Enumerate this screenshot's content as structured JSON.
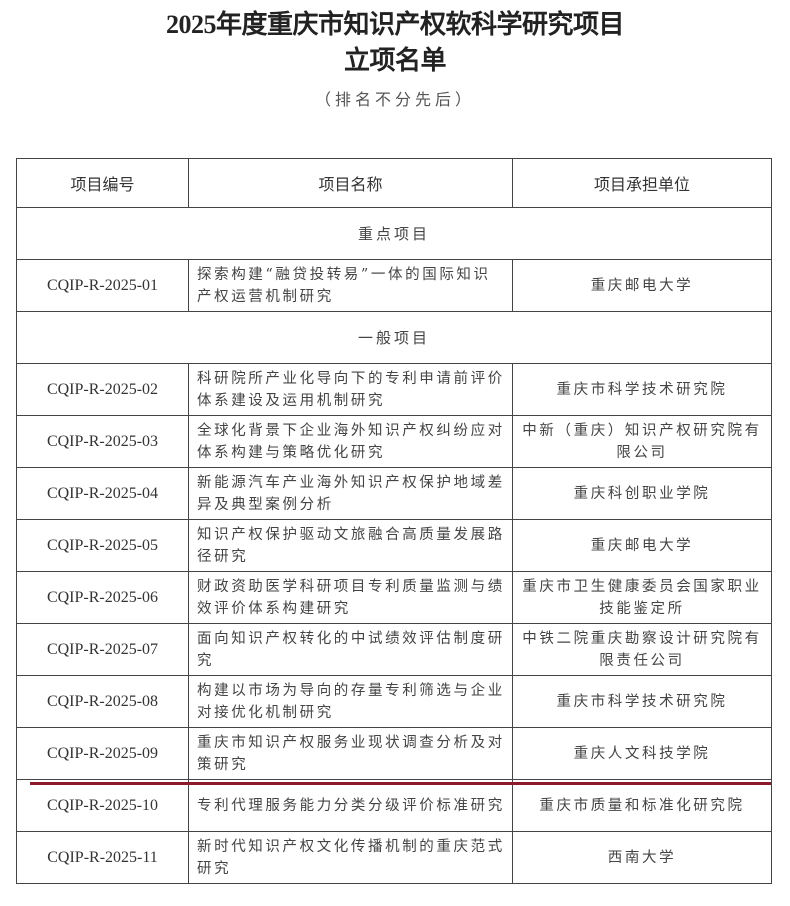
{
  "document": {
    "title_line1": "2025年度重庆市知识产权软科学研究项目",
    "title_line2": "立项名单",
    "subtitle": "（排名不分先后）"
  },
  "table": {
    "headers": [
      "项目编号",
      "项目名称",
      "项目承担单位"
    ],
    "sections": [
      {
        "label": "重点项目",
        "rows": [
          {
            "code": "CQIP-R-2025-01",
            "name": "探索构建“融贷投转易”一体的国际知识产权运营机制研究",
            "unit": "重庆邮电大学"
          }
        ]
      },
      {
        "label": "一般项目",
        "rows": [
          {
            "code": "CQIP-R-2025-02",
            "name": "科研院所产业化导向下的专利申请前评价体系建设及运用机制研究",
            "unit": "重庆市科学技术研究院"
          },
          {
            "code": "CQIP-R-2025-03",
            "name": "全球化背景下企业海外知识产权纠纷应对体系构建与策略优化研究",
            "unit": "中新（重庆）知识产权研究院有限公司"
          },
          {
            "code": "CQIP-R-2025-04",
            "name": "新能源汽车产业海外知识产权保护地域差异及典型案例分析",
            "unit": "重庆科创职业学院"
          },
          {
            "code": "CQIP-R-2025-05",
            "name": "知识产权保护驱动文旅融合高质量发展路径研究",
            "unit": "重庆邮电大学"
          },
          {
            "code": "CQIP-R-2025-06",
            "name": "财政资助医学科研项目专利质量监测与绩效评价体系构建研究",
            "unit": "重庆市卫生健康委员会国家职业技能鉴定所"
          },
          {
            "code": "CQIP-R-2025-07",
            "name": "面向知识产权转化的中试绩效评估制度研究",
            "unit": "中铁二院重庆勘察设计研究院有限责任公司"
          },
          {
            "code": "CQIP-R-2025-08",
            "name": "构建以市场为导向的存量专利筛选与企业对接优化机制研究",
            "unit": "重庆市科学技术研究院"
          },
          {
            "code": "CQIP-R-2025-09",
            "name": "重庆市知识产权服务业现状调查分析及对策研究",
            "unit": "重庆人文科技学院"
          },
          {
            "code": "CQIP-R-2025-10",
            "name": "专利代理服务能力分类分级评价标准研究",
            "unit": "重庆市质量和标准化研究院"
          },
          {
            "code": "CQIP-R-2025-11",
            "name": "新时代知识产权文化传播机制的重庆范式研究",
            "unit": "西南大学"
          }
        ]
      }
    ]
  },
  "colors": {
    "annotation_line": "#8b1a2a"
  }
}
